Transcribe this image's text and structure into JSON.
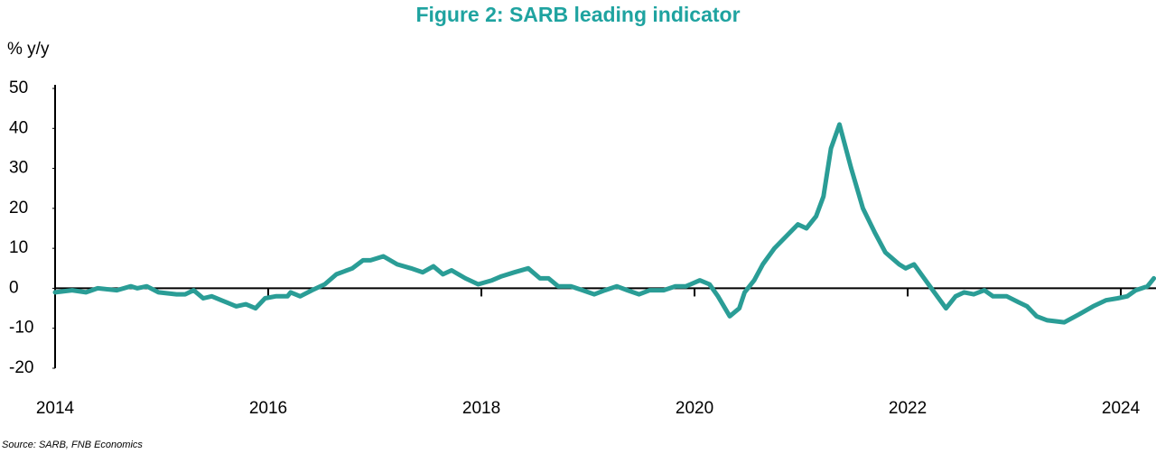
{
  "chart_data": {
    "type": "line",
    "title": "Figure 2: SARB leading indicator",
    "y_label": "% y/y",
    "source": "Source: SARB, FNB Economics",
    "series": [
      {
        "name": "SARB leading indicator",
        "color": "#2a9d96",
        "x": [
          2014.0,
          2014.16,
          2014.29,
          2014.4,
          2014.58,
          2014.71,
          2014.77,
          2014.86,
          2014.97,
          2015.14,
          2015.22,
          2015.3,
          2015.39,
          2015.47,
          2015.56,
          2015.7,
          2015.79,
          2015.88,
          2015.97,
          2016.07,
          2016.18,
          2016.21,
          2016.3,
          2016.41,
          2016.53,
          2016.64,
          2016.79,
          2016.89,
          2016.96,
          2017.08,
          2017.21,
          2017.34,
          2017.45,
          2017.55,
          2017.64,
          2017.72,
          2017.85,
          2017.97,
          2018.1,
          2018.19,
          2018.31,
          2018.44,
          2018.55,
          2018.63,
          2018.72,
          2018.84,
          2018.95,
          2019.06,
          2019.16,
          2019.27,
          2019.37,
          2019.48,
          2019.58,
          2019.71,
          2019.82,
          2019.92,
          2020.05,
          2020.14,
          2020.22,
          2020.33,
          2020.42,
          2020.47,
          2020.56,
          2020.64,
          2020.75,
          2020.86,
          2020.97,
          2021.05,
          2021.14,
          2021.21,
          2021.28,
          2021.36,
          2021.47,
          2021.58,
          2021.69,
          2021.79,
          2021.92,
          2021.98,
          2022.06,
          2022.14,
          2022.25,
          2022.36,
          2022.45,
          2022.53,
          2022.62,
          2022.72,
          2022.8,
          2022.93,
          2023.04,
          2023.12,
          2023.21,
          2023.31,
          2023.47,
          2023.61,
          2023.74,
          2023.86,
          2023.97,
          2024.06,
          2024.14,
          2024.25,
          2024.31
        ],
        "values": [
          -1,
          -0.5,
          -1,
          0,
          -0.5,
          0.5,
          0,
          0.5,
          -1,
          -1.5,
          -1.5,
          -0.5,
          -2.5,
          -2,
          -3,
          -4.5,
          -4,
          -5,
          -2.5,
          -2,
          -2,
          -1,
          -2,
          -0.5,
          1,
          3.5,
          5,
          7,
          7,
          8,
          6,
          5,
          4,
          5.5,
          3.5,
          4.5,
          2.5,
          1,
          2,
          3,
          4,
          5,
          2.5,
          2.5,
          0.5,
          0.5,
          -0.5,
          -1.5,
          -0.5,
          0.5,
          -0.5,
          -1.5,
          -0.5,
          -0.5,
          0.5,
          0.5,
          2,
          1,
          -2,
          -7,
          -5,
          -1,
          2,
          6,
          10,
          13,
          16,
          15,
          18,
          23,
          35,
          41,
          30,
          20,
          14,
          9,
          6,
          5,
          6,
          3,
          -1,
          -5,
          -2,
          -1,
          -1.5,
          -0.5,
          -2,
          -2,
          -3.5,
          -4.5,
          -7,
          -8,
          -8.5,
          -6.5,
          -4.5,
          -3,
          -2.5,
          -2,
          -0.5,
          0.5,
          2.5
        ]
      }
    ],
    "xlim": [
      2014,
      2024.33
    ],
    "xticks": [
      2014,
      2016,
      2018,
      2020,
      2022,
      2024
    ],
    "ylim": [
      -20,
      50
    ],
    "yticks": [
      -20,
      -10,
      0,
      10,
      20,
      30,
      40,
      50
    ]
  }
}
